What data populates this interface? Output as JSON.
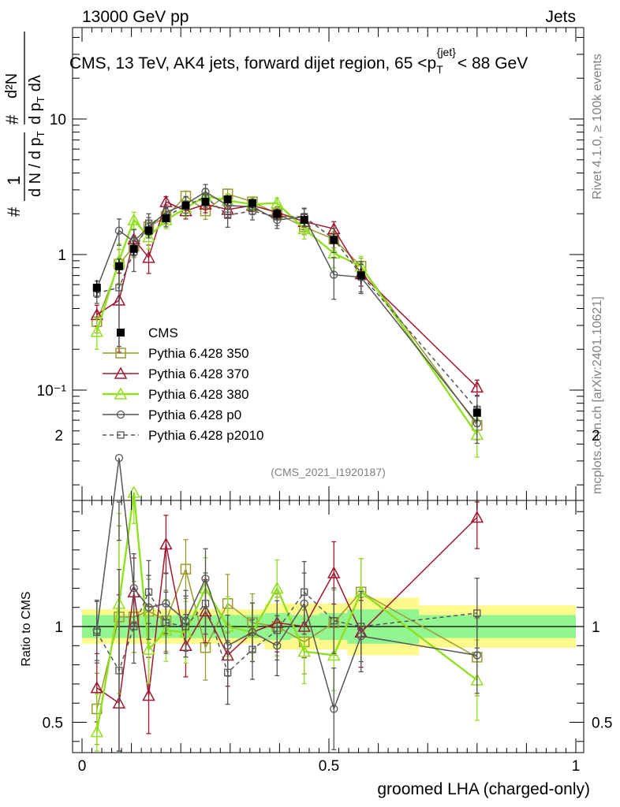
{
  "header": {
    "energy_label": "13000 GeV pp",
    "category_label": "Jets",
    "rivet_label": "Rivet 4.1.0, ≥ 100k events",
    "mcplots_label": "mcplots.cern.ch [arXiv:2401.10621]",
    "analysis_id": "(CMS_2021_I1920187)"
  },
  "chart_data": {
    "type": "line",
    "title": "CMS, 13 TeV, AK4 jets, forward dijet region, 65 < pT jet < 88 GeV",
    "title_parts": {
      "main": "CMS, 13 TeV, AK4 jets, forward dijet region, 65 <p",
      "sub": "T",
      "sup": "{jet}",
      "tail": "< 88 GeV"
    },
    "xlabel": "groomed LHA (charged-only)",
    "ylabel": "1/dN/dpT d2N/dpT dlambda",
    "ylabel_parts": {
      "a": "1",
      "b": "d N / d p",
      "c": "d²N",
      "d": "d p",
      "e": "dλ",
      "f": "T",
      "hash": "#"
    },
    "ratio_ylabel": "Ratio to CMS",
    "xlim": [
      0,
      1
    ],
    "ylim": [
      0.02,
      50
    ],
    "ratio_ylim": [
      0.35,
      2.3
    ],
    "yscale": "log",
    "x_ticks": [
      0,
      0.5,
      1
    ],
    "x_tick_labels": [
      "0",
      "0.5",
      "1"
    ],
    "y_tick_labels": [
      "10⁻¹",
      "1",
      "10"
    ],
    "ratio_tick_labels": [
      "0.5",
      "1",
      "2"
    ],
    "legend_position": "lower-left",
    "x": [
      0.03,
      0.075,
      0.105,
      0.135,
      0.17,
      0.21,
      0.25,
      0.295,
      0.345,
      0.395,
      0.45,
      0.51,
      0.565,
      0.8
    ],
    "cms": {
      "name": "CMS",
      "values": [
        0.57,
        0.82,
        1.1,
        1.5,
        1.85,
        2.3,
        2.45,
        2.55,
        2.4,
        2.0,
        1.8,
        1.28,
        0.7,
        0.068
      ],
      "errors": [
        0.08,
        0.1,
        0.12,
        0.15,
        0.15,
        0.18,
        0.2,
        0.2,
        0.2,
        0.18,
        0.16,
        0.14,
        0.1,
        0.01
      ]
    },
    "series": [
      {
        "name": "Pythia 6.428 350",
        "color": "#9a9a30",
        "marker": "square",
        "dash": false,
        "values": [
          0.32,
          0.85,
          1.15,
          1.6,
          1.9,
          2.7,
          2.1,
          2.8,
          2.45,
          2.0,
          1.6,
          1.3,
          0.82,
          0.055
        ]
      },
      {
        "name": "Pythia 6.428 370",
        "color": "#a01830",
        "marker": "triangle",
        "dash": false,
        "values": [
          0.36,
          0.46,
          1.3,
          0.95,
          2.45,
          2.1,
          2.35,
          2.15,
          2.3,
          2.05,
          1.75,
          1.55,
          0.72,
          0.105
        ]
      },
      {
        "name": "Pythia 6.428 380",
        "color": "#90e020",
        "marker": "triangle",
        "dash": false,
        "values": [
          0.27,
          0.9,
          1.8,
          1.35,
          1.8,
          2.2,
          2.7,
          2.5,
          2.35,
          2.4,
          1.55,
          1.02,
          0.82,
          0.047
        ]
      },
      {
        "name": "Pythia 6.428 p0",
        "color": "#555555",
        "marker": "circle",
        "dash": false,
        "values": [
          0.56,
          1.5,
          1.25,
          1.6,
          2.05,
          2.35,
          2.9,
          2.3,
          2.25,
          1.8,
          1.9,
          0.71,
          0.68,
          0.057
        ]
      },
      {
        "name": "Pythia 6.428 p2010",
        "color": "#555555",
        "marker": "square-small",
        "dash": true,
        "values": [
          0.52,
          0.57,
          1.05,
          1.7,
          1.9,
          2.3,
          2.65,
          1.95,
          2.1,
          1.9,
          1.9,
          1.3,
          0.71,
          0.072
        ]
      }
    ],
    "mc_error_bars": [
      0.07,
      0.3,
      0.25,
      0.25,
      0.25,
      0.3,
      0.35,
      0.3,
      0.25,
      0.22,
      0.25,
      0.22,
      0.15,
      0.015
    ],
    "ratio": {
      "series": [
        {
          "name": "Pythia 6.428 350",
          "values": [
            0.57,
            1.05,
            1.05,
            1.08,
            1.03,
            1.3,
            0.89,
            1.12,
            1.02,
            1.0,
            0.92,
            1.02,
            1.18,
            0.84
          ]
        },
        {
          "name": "Pythia 6.428 370",
          "values": [
            0.68,
            0.6,
            1.18,
            0.64,
            1.43,
            0.9,
            1.08,
            0.85,
            0.97,
            1.02,
            1.0,
            1.28,
            0.97,
            1.57
          ]
        },
        {
          "name": "Pythia 6.428 380",
          "values": [
            0.45,
            1.12,
            1.7,
            0.88,
            0.98,
            0.97,
            1.2,
            1.0,
            0.97,
            1.2,
            0.87,
            0.85,
            1.18,
            0.72
          ]
        },
        {
          "name": "Pythia 6.428 p0",
          "values": [
            0.98,
            1.88,
            1.2,
            1.1,
            1.12,
            1.03,
            1.25,
            0.9,
            0.97,
            0.9,
            1.12,
            0.57,
            0.95,
            0.85
          ]
        },
        {
          "name": "Pythia 6.428 p2010",
          "values": [
            0.97,
            0.77,
            1.0,
            1.18,
            1.02,
            1.0,
            1.12,
            0.76,
            0.88,
            0.98,
            1.18,
            1.03,
            1.0,
            1.07
          ]
        }
      ],
      "green_band": [
        0.06,
        0.06,
        0.06,
        0.06,
        0.06,
        0.06,
        0.06,
        0.06,
        0.06,
        0.07,
        0.06,
        0.07,
        0.09,
        0.06
      ],
      "yellow_band": [
        0.09,
        0.09,
        0.09,
        0.09,
        0.09,
        0.09,
        0.09,
        0.09,
        0.09,
        0.12,
        0.12,
        0.12,
        0.15,
        0.11
      ]
    }
  }
}
